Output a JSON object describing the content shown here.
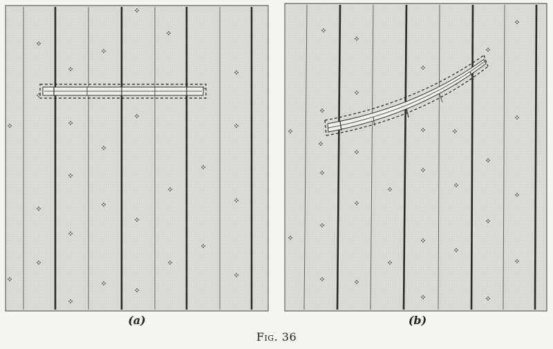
{
  "figure": {
    "caption": "Fig. 36"
  },
  "panels": [
    {
      "id": "a",
      "label": "(a)",
      "description_shape": "straight-strip"
    },
    {
      "id": "b",
      "label": "(b)",
      "description_shape": "curved-strip"
    }
  ],
  "colors": {
    "paper": "#f4f4f1",
    "panel_fill": "#d8d8d4",
    "line_dark": "#2a2a2a",
    "line_thin": "#555555",
    "strip_fill": "#eeeeea"
  }
}
